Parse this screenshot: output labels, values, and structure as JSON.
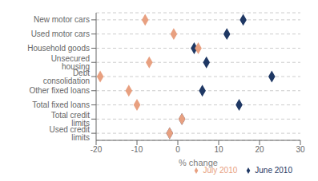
{
  "chart_data": {
    "type": "scatter",
    "orientation": "horizontal",
    "categories": [
      "New motor cars",
      "Used motor cars",
      "Household goods",
      "Unsecured housing",
      "Debt consolidation",
      "Other fixed loans",
      "Total fixed loans",
      "Total credit limits",
      "Used credit limits"
    ],
    "series": [
      {
        "name": "June 2010",
        "color": "#1F3864",
        "marker": "diamond",
        "values": [
          16,
          12,
          4,
          7,
          23,
          6,
          15,
          1,
          -2
        ]
      },
      {
        "name": "July 2010",
        "color": "#E8A080",
        "marker": "diamond",
        "values": [
          -8,
          -1,
          5,
          -7,
          -19,
          -12,
          -10,
          1,
          -2
        ]
      }
    ],
    "xlabel": "% change",
    "xlim": [
      -20,
      30
    ],
    "xticks": [
      -20,
      -10,
      0,
      10,
      20,
      30
    ],
    "grid": true,
    "legend": "lower right"
  }
}
